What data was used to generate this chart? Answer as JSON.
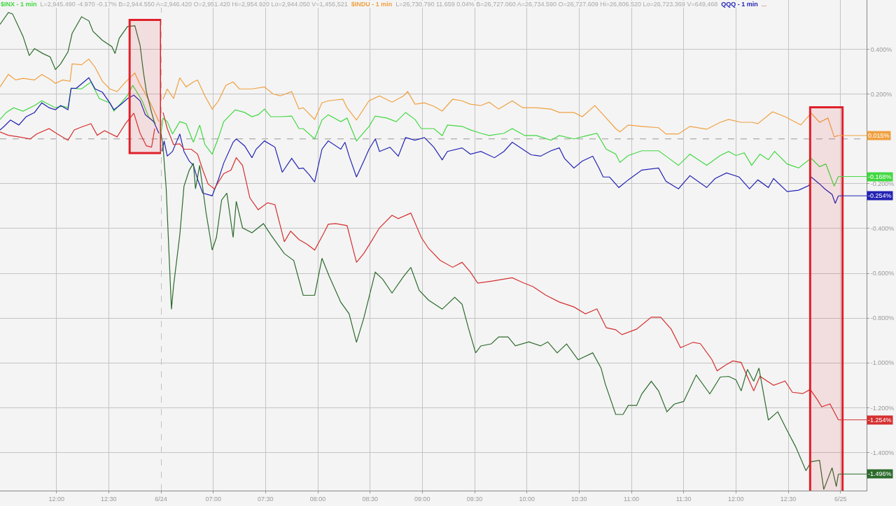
{
  "chart_data": [
    {
      "type": "line",
      "annotations": [
        "L=2,945.490 -4.970 -0.17% B=2,944.550 A=2,946.420 O=2,951.420 Hi=2,954.920 Lo=2,944.050 V=1,456,521",
        "L=26,730.790 11.659 0.04% B=26,727.060 A=26,734.590 O=26,727.609 Hi=26,806.520 Lo=26,723.369 V=649,468",
        "..."
      ],
      "series": [
        {
          "name": "$INX - 1 min",
          "color": "#40d840",
          "x": [
            11.46,
            11.52,
            11.59,
            11.68,
            11.79,
            11.86,
            11.99,
            12.06,
            12.11,
            12.14,
            12.24,
            12.33,
            12.41,
            12.51,
            12.55,
            12.62,
            12.68,
            12.73,
            12.78,
            12.82,
            12.88,
            12.95
          ],
          "values": [
            0.087,
            0.118,
            0.139,
            0.124,
            0.149,
            0.17,
            0.139,
            0.146,
            0.139,
            0.226,
            0.223,
            0.254,
            0.18,
            0.161,
            0.124,
            0.161,
            0.195,
            0.239,
            0.201,
            0.17,
            0.099,
            0.068
          ]
        },
        {
          "name": "$INDU - 1 min",
          "color": "#f0a040",
          "x": [
            11.46,
            11.54,
            11.61,
            11.68,
            11.79,
            11.86,
            11.95,
            11.99,
            12.06,
            12.13,
            12.15,
            12.24,
            12.31,
            12.37,
            12.44,
            12.51,
            12.58,
            12.66,
            12.75,
            12.8,
            12.84,
            12.91,
            12.98
          ],
          "values": [
            0.232,
            0.288,
            0.263,
            0.27,
            0.263,
            0.288,
            0.263,
            0.248,
            0.263,
            0.257,
            0.335,
            0.331,
            0.356,
            0.319,
            0.257,
            0.223,
            0.211,
            0.254,
            0.294,
            0.242,
            0.211,
            0.149,
            0.077
          ]
        },
        {
          "name": "QQQ - 1 min",
          "color": "#2323b4",
          "x": [
            11.46,
            11.5,
            11.56,
            11.64,
            11.71,
            11.79,
            11.86,
            11.93,
            11.99,
            12.04,
            12.11,
            12.14,
            12.19,
            12.31,
            12.37,
            12.44,
            12.51,
            12.55,
            12.62,
            12.68,
            12.74,
            12.8,
            12.85,
            12.93,
            12.98
          ],
          "values": [
            0.04,
            0.056,
            0.084,
            0.062,
            0.099,
            0.118,
            0.161,
            0.139,
            0.13,
            0.149,
            0.13,
            0.226,
            0.226,
            0.273,
            0.223,
            0.208,
            0.161,
            0.13,
            0.155,
            0.18,
            0.195,
            0.17,
            0.108,
            0.077,
            0.025
          ]
        },
        {
          "color": "#d63030",
          "x": [
            11.46,
            11.54,
            11.64,
            11.75,
            11.81,
            11.93,
            12.01,
            12.11,
            12.17,
            12.24,
            12.33,
            12.39,
            12.46,
            12.58,
            12.66,
            12.74,
            12.8,
            12.86,
            12.91,
            12.94
          ],
          "values": [
            0.031,
            0.016,
            0.009,
            0,
            0.022,
            0.046,
            0.022,
            -0.006,
            0.04,
            0.053,
            0.068,
            0.016,
            0.037,
            0.009,
            0.068,
            0.115,
            0.025,
            -0.031,
            -0.037,
            0.046
          ]
        },
        {
          "color": "#2c6b2c",
          "x": [
            11.46,
            11.54,
            11.58,
            11.68,
            11.74,
            11.79,
            11.87,
            11.94,
            11.99,
            12.04,
            12.11,
            12.15,
            12.24,
            12.31,
            12.35,
            12.44,
            12.53,
            12.56,
            12.6,
            12.68,
            12.75,
            12.8,
            12.83,
            12.86,
            12.91,
            12.94
          ],
          "values": [
            0.511,
            0.564,
            0.558,
            0.458,
            0.372,
            0.403,
            0.381,
            0.366,
            0.31,
            0.335,
            0.388,
            0.471,
            0.545,
            0.527,
            0.48,
            0.44,
            0.412,
            0.381,
            0.449,
            0.502,
            0.505,
            0.418,
            0.304,
            0.211,
            0.118,
            0.068
          ]
        }
      ],
      "xlim": [
        11.46,
        13
      ],
      "ylim": [
        -1.57,
        0.62
      ],
      "xticks": [
        {
          "value": 12,
          "label": "12:00"
        },
        {
          "value": 12.5,
          "label": "12:30"
        }
      ],
      "yticks": [
        0.4,
        0.2,
        -0.2,
        -0.4,
        -0.6,
        -0.8,
        -1,
        -1.2,
        -1.4
      ],
      "tick_labels": "x",
      "ref_lines": [
        {
          "axis": "y",
          "value": 0,
          "color": "#9a9a9a",
          "line_style": "dashed"
        }
      ],
      "bands": [
        {
          "axis": "x",
          "from": 12.7,
          "to": 13.0,
          "color": "#e0202a"
        }
      ],
      "grid": true,
      "legend": "top",
      "marker": "none",
      "line_style": "solid"
    },
    {
      "type": "line",
      "series": [
        {
          "color": "#40d840",
          "x": [
            6.5,
            6.52,
            6.56,
            6.61,
            6.68,
            6.74,
            6.81,
            6.87,
            6.92,
            6.99,
            7.05,
            7.1,
            7.21,
            7.3,
            7.37,
            7.43,
            7.49,
            7.55,
            7.64,
            7.75,
            7.82,
            7.86,
            7.97,
            8.04,
            8.1,
            8.22,
            8.28,
            8.37,
            8.49,
            8.55,
            8.66,
            8.75,
            8.84,
            8.93,
            8.99,
            9.11,
            9.19,
            9.24,
            9.38,
            9.46,
            9.56,
            9.64,
            9.78,
            9.86,
            9.98,
            10.09,
            10.23,
            10.31,
            10.45,
            10.58,
            10.67,
            10.76,
            10.85,
            10.89,
            10.97,
            11.1,
            11.26,
            11.36,
            11.45,
            11.56,
            11.72,
            11.85,
            11.93,
            12.0,
            12.08,
            12.15,
            12.23,
            12.31,
            12.37,
            12.49,
            12.6,
            12.7,
            12.72,
            12.8,
            12.86,
            12.94,
            12.98
          ],
          "values": [
            0.025,
            0.093,
            0.077,
            0.022,
            0.077,
            0.068,
            -0.015,
            0.062,
            -0.025,
            -0.068,
            0.006,
            0.077,
            0.13,
            0.118,
            0.099,
            0.108,
            0.133,
            0.099,
            0.099,
            0.102,
            0.046,
            0.046,
            0,
            0.084,
            0.108,
            0.077,
            0.093,
            -0.009,
            0.056,
            0.102,
            0.093,
            0.077,
            0.118,
            0.087,
            0.046,
            0.046,
            0.015,
            0.062,
            0.056,
            0.04,
            0.025,
            0.015,
            0.025,
            0.046,
            0.015,
            0.015,
            -0.006,
            0.015,
            0,
            0.015,
            0.025,
            -0.046,
            -0.068,
            -0.105,
            -0.074,
            -0.053,
            -0.053,
            -0.087,
            -0.118,
            -0.068,
            -0.118,
            -0.074,
            -0.056,
            -0.074,
            -0.062,
            -0.118,
            -0.068,
            -0.093,
            -0.056,
            -0.112,
            -0.13,
            -0.093,
            -0.087,
            -0.124,
            -0.112,
            -0.211,
            -0.168
          ],
          "value_labels": [
            null,
            null,
            null,
            null,
            null,
            null,
            null,
            null,
            null,
            null,
            null,
            null,
            null,
            null,
            null,
            null,
            null,
            null,
            null,
            null,
            null,
            null,
            null,
            null,
            null,
            null,
            null,
            null,
            null,
            null,
            null,
            null,
            null,
            null,
            null,
            null,
            null,
            null,
            null,
            null,
            null,
            null,
            null,
            null,
            null,
            null,
            null,
            null,
            null,
            null,
            null,
            null,
            null,
            null,
            null,
            null,
            null,
            null,
            null,
            null,
            null,
            null,
            null,
            null,
            null,
            null,
            null,
            null,
            null,
            null,
            null,
            null,
            null,
            null,
            null,
            null,
            "-0.168%"
          ]
        },
        {
          "color": "#f0a040",
          "x": [
            6.52,
            6.56,
            6.62,
            6.68,
            6.74,
            6.81,
            6.85,
            6.92,
            6.99,
            7.05,
            7.12,
            7.19,
            7.25,
            7.37,
            7.49,
            7.57,
            7.64,
            7.75,
            7.82,
            7.86,
            7.97,
            8.04,
            8.1,
            8.24,
            8.28,
            8.37,
            8.49,
            8.59,
            8.71,
            8.82,
            8.86,
            8.93,
            9.02,
            9.11,
            9.19,
            9.29,
            9.38,
            9.46,
            9.56,
            9.64,
            9.73,
            9.86,
            9.96,
            10.09,
            10.23,
            10.31,
            10.45,
            10.53,
            10.65,
            10.73,
            10.85,
            10.89,
            10.97,
            11.1,
            11.26,
            11.33,
            11.45,
            11.56,
            11.72,
            11.85,
            11.93,
            12.05,
            12.15,
            12.21,
            12.35,
            12.47,
            12.62,
            12.72,
            12.8,
            12.88,
            12.94,
            12.98
          ],
          "values": [
            0.177,
            0.223,
            0.18,
            0.273,
            0.232,
            0.254,
            0.263,
            0.192,
            0.133,
            0.17,
            0.239,
            0.254,
            0.223,
            0.223,
            0.232,
            0.201,
            0.192,
            0.211,
            0.133,
            0.139,
            0.087,
            0.161,
            0.17,
            0.177,
            0.139,
            0.084,
            0.17,
            0.192,
            0.164,
            0.192,
            0.211,
            0.155,
            0.161,
            0.146,
            0.124,
            0.177,
            0.17,
            0.155,
            0.149,
            0.164,
            0.133,
            0.17,
            0.139,
            0.139,
            0.133,
            0.118,
            0.118,
            0.099,
            0.149,
            0.108,
            0.046,
            0.031,
            0.062,
            0.056,
            0.05,
            0.022,
            0.022,
            0.056,
            0.043,
            0.074,
            0.087,
            0.074,
            0.074,
            0.068,
            0.121,
            0.099,
            0.062,
            0.115,
            0.074,
            0.093,
            0.009,
            0.015
          ],
          "value_labels": [
            null,
            null,
            null,
            null,
            null,
            null,
            null,
            null,
            null,
            null,
            null,
            null,
            null,
            null,
            null,
            null,
            null,
            null,
            null,
            null,
            null,
            null,
            null,
            null,
            null,
            null,
            null,
            null,
            null,
            null,
            null,
            null,
            null,
            null,
            null,
            null,
            null,
            null,
            null,
            null,
            null,
            null,
            null,
            null,
            null,
            null,
            null,
            null,
            null,
            null,
            null,
            null,
            null,
            null,
            null,
            null,
            null,
            null,
            null,
            null,
            null,
            null,
            null,
            null,
            null,
            null,
            null,
            null,
            null,
            null,
            null,
            "0.015%"
          ]
        },
        {
          "color": "#2323b4",
          "x": [
            6.51,
            6.53,
            6.56,
            6.61,
            6.68,
            6.72,
            6.77,
            6.81,
            6.85,
            6.9,
            6.99,
            7.05,
            7.1,
            7.19,
            7.22,
            7.3,
            7.37,
            7.41,
            7.49,
            7.59,
            7.66,
            7.75,
            7.82,
            7.86,
            7.92,
            7.97,
            8.04,
            8.1,
            8.22,
            8.26,
            8.3,
            8.37,
            8.44,
            8.49,
            8.55,
            8.59,
            8.69,
            8.77,
            8.84,
            8.93,
            9.02,
            9.11,
            9.19,
            9.24,
            9.38,
            9.46,
            9.56,
            9.69,
            9.78,
            9.86,
            9.96,
            10.04,
            10.13,
            10.23,
            10.31,
            10.36,
            10.45,
            10.53,
            10.63,
            10.69,
            10.73,
            10.79,
            10.88,
            10.97,
            11.1,
            11.26,
            11.33,
            11.45,
            11.56,
            11.72,
            11.8,
            11.91,
            12.03,
            12.13,
            12.21,
            12.31,
            12.36,
            12.49,
            12.6,
            12.7,
            12.72,
            12.8,
            12.85,
            12.92,
            12.95,
            12.98
          ],
          "values": [
            -0.056,
            -0.009,
            -0.077,
            -0.056,
            0.022,
            -0.056,
            -0.099,
            -0.118,
            -0.18,
            -0.242,
            -0.254,
            -0.18,
            -0.108,
            -0.015,
            0,
            -0.031,
            -0.084,
            -0.046,
            -0.009,
            -0.037,
            -0.149,
            -0.087,
            -0.133,
            -0.13,
            -0.161,
            -0.192,
            -0.046,
            -0.009,
            -0.046,
            -0.015,
            -0.077,
            -0.17,
            -0.099,
            -0.046,
            0,
            -0.056,
            -0.037,
            -0.077,
            0.006,
            -0.006,
            0.006,
            -0.037,
            -0.093,
            -0.056,
            -0.04,
            -0.068,
            -0.056,
            -0.084,
            -0.056,
            -0.015,
            -0.046,
            -0.071,
            -0.077,
            -0.053,
            -0.04,
            -0.087,
            -0.13,
            -0.099,
            -0.077,
            -0.13,
            -0.17,
            -0.17,
            -0.217,
            -0.183,
            -0.139,
            -0.13,
            -0.189,
            -0.223,
            -0.164,
            -0.217,
            -0.177,
            -0.152,
            -0.17,
            -0.223,
            -0.183,
            -0.217,
            -0.177,
            -0.235,
            -0.229,
            -0.208,
            -0.17,
            -0.201,
            -0.223,
            -0.248,
            -0.288,
            -0.254
          ],
          "value_labels": [
            null,
            null,
            null,
            null,
            null,
            null,
            null,
            null,
            null,
            null,
            null,
            null,
            null,
            null,
            null,
            null,
            null,
            null,
            null,
            null,
            null,
            null,
            null,
            null,
            null,
            null,
            null,
            null,
            null,
            null,
            null,
            null,
            null,
            null,
            null,
            null,
            null,
            null,
            null,
            null,
            null,
            null,
            null,
            null,
            null,
            null,
            null,
            null,
            null,
            null,
            null,
            null,
            null,
            null,
            null,
            null,
            null,
            null,
            null,
            null,
            null,
            null,
            null,
            null,
            null,
            null,
            null,
            null,
            null,
            null,
            null,
            null,
            null,
            null,
            null,
            null,
            null,
            null,
            null,
            null,
            null,
            null,
            null,
            null,
            null,
            "-0.254%"
          ]
        },
        {
          "color": "#d63030",
          "x": [
            6.52,
            6.56,
            6.62,
            6.68,
            6.72,
            6.79,
            6.85,
            6.9,
            6.95,
            7.01,
            7.1,
            7.17,
            7.22,
            7.28,
            7.35,
            7.43,
            7.52,
            7.59,
            7.68,
            7.74,
            7.82,
            7.9,
            7.97,
            8.06,
            8.1,
            8.17,
            8.28,
            8.37,
            8.44,
            8.51,
            8.59,
            8.71,
            8.77,
            8.89,
            8.99,
            9.06,
            9.17,
            9.29,
            9.38,
            9.46,
            9.53,
            9.66,
            9.78,
            9.86,
            9.96,
            10.06,
            10.18,
            10.31,
            10.45,
            10.56,
            10.67,
            10.76,
            10.85,
            10.91,
            11.05,
            11.19,
            11.28,
            11.38,
            11.47,
            11.59,
            11.66,
            11.77,
            11.82,
            11.9,
            11.97,
            12.05,
            12.17,
            12.23,
            12.36,
            12.47,
            12.54,
            12.64,
            12.71,
            12.78,
            12.82,
            12.9,
            12.98
          ],
          "values": [
            0.118,
            0.046,
            -0.025,
            -0.022,
            -0.046,
            -0.046,
            -0.068,
            -0.139,
            -0.201,
            -0.223,
            -0.155,
            -0.139,
            -0.084,
            -0.118,
            -0.263,
            -0.316,
            -0.285,
            -0.294,
            -0.459,
            -0.412,
            -0.449,
            -0.471,
            -0.496,
            -0.418,
            -0.381,
            -0.378,
            -0.387,
            -0.551,
            -0.511,
            -0.459,
            -0.397,
            -0.341,
            -0.356,
            -0.331,
            -0.44,
            -0.489,
            -0.542,
            -0.573,
            -0.551,
            -0.595,
            -0.644,
            -0.635,
            -0.626,
            -0.62,
            -0.641,
            -0.66,
            -0.697,
            -0.728,
            -0.75,
            -0.781,
            -0.759,
            -0.843,
            -0.852,
            -0.874,
            -0.849,
            -0.796,
            -0.796,
            -0.849,
            -0.932,
            -0.908,
            -0.914,
            -0.985,
            -1.035,
            -1.01,
            -0.991,
            -0.998,
            -1.125,
            -1.06,
            -1.1,
            -1.081,
            -1.131,
            -1.137,
            -1.118,
            -1.165,
            -1.196,
            -1.183,
            -1.254
          ],
          "value_labels": [
            null,
            null,
            null,
            null,
            null,
            null,
            null,
            null,
            null,
            null,
            null,
            null,
            null,
            null,
            null,
            null,
            null,
            null,
            null,
            null,
            null,
            null,
            null,
            null,
            null,
            null,
            null,
            null,
            null,
            null,
            null,
            null,
            null,
            null,
            null,
            null,
            null,
            null,
            null,
            null,
            null,
            null,
            null,
            null,
            null,
            null,
            null,
            null,
            null,
            null,
            null,
            null,
            null,
            null,
            null,
            null,
            null,
            null,
            null,
            null,
            null,
            null,
            null,
            null,
            null,
            null,
            null,
            null,
            null,
            null,
            null,
            null,
            null,
            null,
            null,
            null,
            "-1.254%"
          ]
        },
        {
          "color": "#2c6b2c",
          "x": [
            6.5,
            6.52,
            6.55,
            6.6,
            6.62,
            6.68,
            6.72,
            6.77,
            6.81,
            6.83,
            6.87,
            6.93,
            6.99,
            7.03,
            7.08,
            7.13,
            7.19,
            7.22,
            7.28,
            7.37,
            7.48,
            7.55,
            7.68,
            7.77,
            7.86,
            7.97,
            8.04,
            8.11,
            8.22,
            8.3,
            8.37,
            8.44,
            8.55,
            8.62,
            8.71,
            8.82,
            8.89,
            8.97,
            9.06,
            9.19,
            9.31,
            9.38,
            9.44,
            9.51,
            9.56,
            9.66,
            9.73,
            9.82,
            9.89,
            10.02,
            10.13,
            10.2,
            10.29,
            10.38,
            10.49,
            10.63,
            10.71,
            10.75,
            10.85,
            10.92,
            10.97,
            11.05,
            11.1,
            11.19,
            11.26,
            11.34,
            11.41,
            11.5,
            11.62,
            11.75,
            11.85,
            11.93,
            12.0,
            12.05,
            12.11,
            12.17,
            12.22,
            12.31,
            12.4,
            12.49,
            12.57,
            12.67,
            12.72,
            12.8,
            12.84,
            12.92,
            12.96,
            12.98
          ],
          "values": [
            0.025,
            -0.037,
            -0.223,
            -0.76,
            -0.657,
            -0.428,
            -0.211,
            -0.14,
            -0.109,
            -0.223,
            -0.118,
            -0.326,
            -0.496,
            -0.44,
            -0.273,
            -0.242,
            -0.44,
            -0.279,
            -0.397,
            -0.419,
            -0.378,
            -0.428,
            -0.512,
            -0.543,
            -0.698,
            -0.698,
            -0.533,
            -0.614,
            -0.729,
            -0.781,
            -0.908,
            -0.8,
            -0.595,
            -0.626,
            -0.688,
            -0.614,
            -0.574,
            -0.676,
            -0.72,
            -0.76,
            -0.707,
            -0.738,
            -0.843,
            -0.955,
            -0.924,
            -0.915,
            -0.884,
            -0.884,
            -0.924,
            -0.906,
            -0.924,
            -0.906,
            -0.955,
            -0.915,
            -0.986,
            -0.955,
            -1.023,
            -1.094,
            -1.23,
            -1.23,
            -1.19,
            -1.19,
            -1.138,
            -1.082,
            -1.125,
            -1.218,
            -1.184,
            -1.172,
            -1.054,
            -1.138,
            -1.063,
            -1.06,
            -1.075,
            -1.125,
            -1.029,
            -1.082,
            -1.023,
            -1.255,
            -1.218,
            -1.302,
            -1.373,
            -1.481,
            -1.441,
            -1.435,
            -1.565,
            -1.468,
            -1.552,
            -1.496
          ],
          "value_labels": [
            null,
            null,
            null,
            null,
            null,
            null,
            null,
            null,
            null,
            null,
            null,
            null,
            null,
            null,
            null,
            null,
            null,
            null,
            null,
            null,
            null,
            null,
            null,
            null,
            null,
            null,
            null,
            null,
            null,
            null,
            null,
            null,
            null,
            null,
            null,
            null,
            null,
            null,
            null,
            null,
            null,
            null,
            null,
            null,
            null,
            null,
            null,
            null,
            null,
            null,
            null,
            null,
            null,
            null,
            null,
            null,
            null,
            null,
            null,
            null,
            null,
            null,
            null,
            null,
            null,
            null,
            null,
            null,
            null,
            null,
            null,
            null,
            null,
            null,
            null,
            null,
            null,
            null,
            null,
            null,
            null,
            null,
            null,
            null,
            null,
            null,
            null,
            "-1.496%"
          ]
        }
      ],
      "xlim": [
        6.5,
        13.25
      ],
      "ylim": [
        -1.57,
        0.62
      ],
      "xticks": [
        {
          "value": 6.5,
          "label": "6/24"
        },
        {
          "value": 7,
          "label": "07:00"
        },
        {
          "value": 7.5,
          "label": "07:30"
        },
        {
          "value": 8,
          "label": "08:00"
        },
        {
          "value": 8.5,
          "label": "08:30"
        },
        {
          "value": 9,
          "label": "09:00"
        },
        {
          "value": 9.5,
          "label": "09:30"
        },
        {
          "value": 10,
          "label": "10:00"
        },
        {
          "value": 10.5,
          "label": "10:30"
        },
        {
          "value": 11,
          "label": "11:00"
        },
        {
          "value": 11.5,
          "label": "11:30"
        },
        {
          "value": 12,
          "label": "12:00"
        },
        {
          "value": 12.5,
          "label": "12:30"
        },
        {
          "value": 13,
          "label": "6/25"
        }
      ],
      "yticks": [
        {
          "value": 0.4,
          "label": "0.400%"
        },
        {
          "value": 0.2,
          "label": "0.200%"
        },
        {
          "value": -0.2,
          "label": "-0.200%"
        },
        {
          "value": -0.4,
          "label": "-0.400%"
        },
        {
          "value": -0.6,
          "label": "-0.600%"
        },
        {
          "value": -0.8,
          "label": "-0.800%"
        },
        {
          "value": -1,
          "label": "-1.000%"
        },
        {
          "value": -1.2,
          "label": "-1.200%"
        },
        {
          "value": -1.4,
          "label": "-1.400%"
        }
      ],
      "ref_lines": [
        {
          "axis": "y",
          "value": 0,
          "color": "#9a9a9a",
          "line_style": "dashed"
        },
        {
          "axis": "x",
          "value": 6.5,
          "color": "#8a8a8a",
          "line_style": "dashed"
        }
      ],
      "bands": [
        {
          "axis": "x",
          "from": 12.71,
          "to": 13.02,
          "color": "#e0202a"
        }
      ],
      "grid": true,
      "marker": "none",
      "line_style": "solid"
    }
  ]
}
